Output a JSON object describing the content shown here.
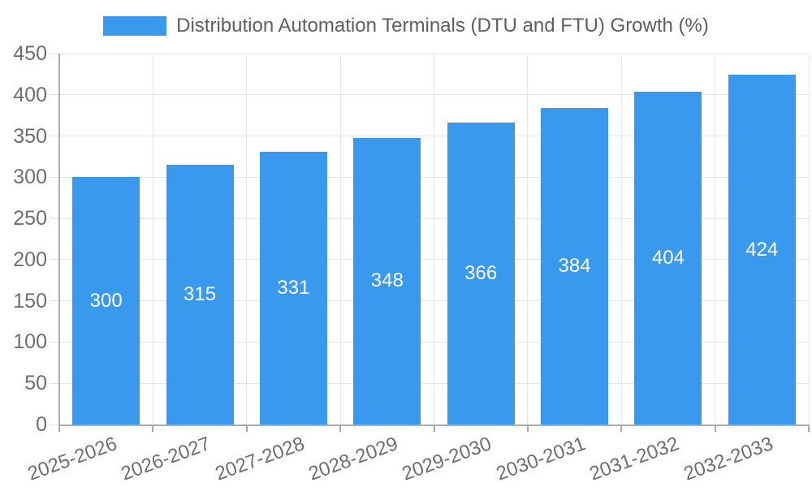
{
  "chart_data": {
    "type": "bar",
    "title": "Distribution Automation Terminals (DTU and FTU) Growth (%)",
    "categories": [
      "2025-2026",
      "2026-2027",
      "2027-2028",
      "2028-2029",
      "2029-2030",
      "2030-2031",
      "2031-2032",
      "2032-2033"
    ],
    "values": [
      300,
      315,
      331,
      348,
      366,
      384,
      404,
      424
    ],
    "xlabel": "",
    "ylabel": "",
    "ylim": [
      0,
      450
    ],
    "ytick_step": 50,
    "ytick_labels": [
      "0",
      "50",
      "100",
      "150",
      "200",
      "250",
      "300",
      "350",
      "400",
      "450"
    ],
    "grid": true,
    "legend_position": "top",
    "legend_label": "Distribution Automation Terminals (DTU and FTU) Growth (%)",
    "value_labels_shown": true,
    "colors": {
      "bar": "#3999ec",
      "value_label": "#ffffff",
      "axis_line": "#aaaaaa",
      "gridline": "#e6e6e6",
      "tick": "#e0e0e0",
      "x_tick": "#aaaaaa",
      "tick_label": "#6e6e6e",
      "title": "#5e5e5e",
      "background": "#ffffff"
    }
  }
}
